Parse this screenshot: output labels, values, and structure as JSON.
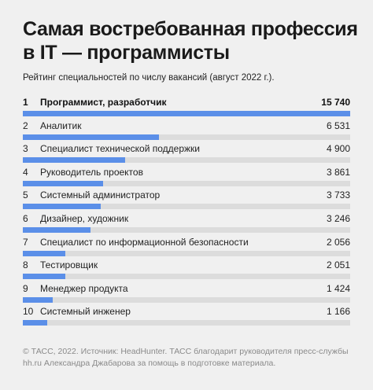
{
  "header": {
    "title": "Самая востребованная профессия в IT — программисты",
    "subtitle": "Рейтинг специальностей по числу вакансий (август 2022 г.)."
  },
  "footer": {
    "text": "© ТАСС, 2022. Источник: HeadHunter. ТАСС благодарит руководителя пресс-службы hh.ru Александра Джабарова за помощь в подготовке материала."
  },
  "colors": {
    "bar": "#5b8fe8",
    "track": "#dcdcdc",
    "background": "#f0f0f0"
  },
  "chart_data": {
    "type": "bar",
    "title": "Самая востребованная профессия в IT — программисты",
    "subtitle": "Рейтинг специальностей по числу вакансий (август 2022 г.).",
    "xlabel": "",
    "ylabel": "",
    "ranks": [
      "1",
      "2",
      "3",
      "4",
      "5",
      "6",
      "7",
      "8",
      "9",
      "10"
    ],
    "categories": [
      "Программист, разработчик",
      "Аналитик",
      "Специалист технической поддержки",
      "Руководитель проектов",
      "Системный администратор",
      "Дизайнер, художник",
      "Специалист по информационной безопасности",
      "Тестировщик",
      "Менеджер продукта",
      "Системный инженер"
    ],
    "value_labels": [
      "15 740",
      "6 531",
      "4 900",
      "3 861",
      "3 733",
      "3 246",
      "2 056",
      "2 051",
      "1 424",
      "1 166"
    ],
    "values": [
      15740,
      6531,
      4900,
      3861,
      3733,
      3246,
      2056,
      2051,
      1424,
      1166
    ],
    "xlim": [
      0,
      15740
    ],
    "orientation": "horizontal",
    "grid": false
  }
}
